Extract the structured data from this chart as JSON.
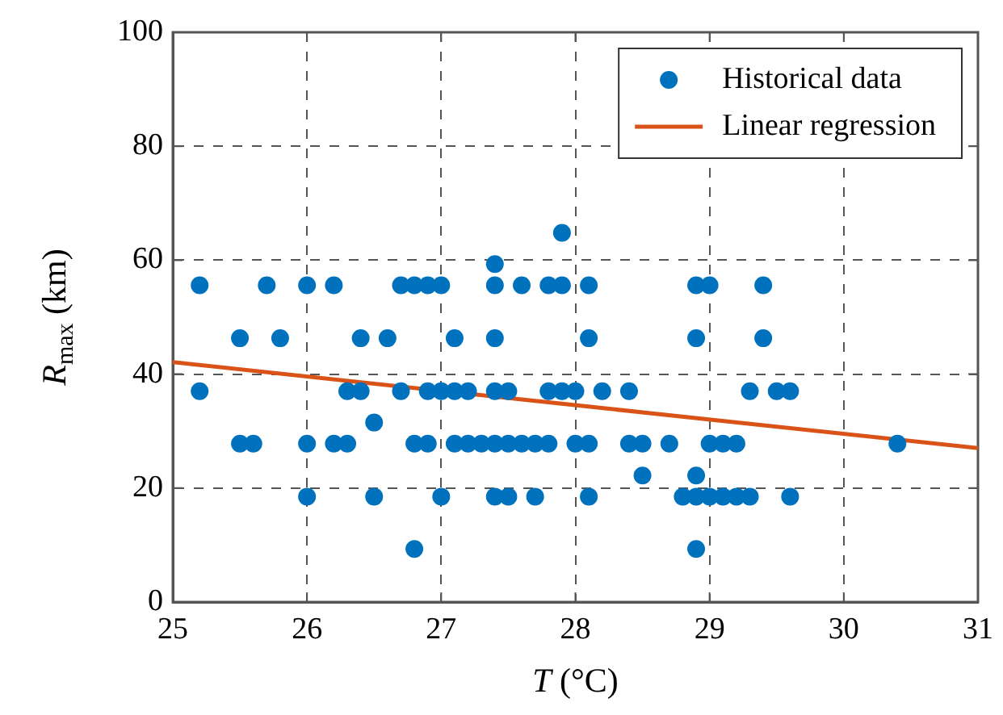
{
  "chart_data": {
    "type": "scatter",
    "xlabel": "T (°C)",
    "ylabel": "R$_{max}$ (km)",
    "xlim": [
      25,
      31
    ],
    "xticks": [
      25,
      26,
      27,
      28,
      29,
      30,
      31
    ],
    "ylim": [
      0,
      100
    ],
    "yticks": [
      0,
      20,
      40,
      60,
      80,
      100
    ],
    "grid": true,
    "legend": "top right",
    "marker": "circle",
    "series": [
      {
        "name": "Historical data",
        "color": "#0072bd",
        "x": [
          25.2,
          25.7,
          26.0,
          26.2,
          26.7,
          26.8,
          26.9,
          27.0,
          27.4,
          27.6,
          27.8,
          27.9,
          28.1,
          28.9,
          29.0,
          29.4,
          25.5,
          25.8,
          26.4,
          26.6,
          27.1,
          27.4,
          28.1,
          28.9,
          29.4,
          25.2,
          26.3,
          26.4,
          26.7,
          26.9,
          27.0,
          27.1,
          27.2,
          27.4,
          27.5,
          27.8,
          27.9,
          28.0,
          28.2,
          28.4,
          29.3,
          29.5,
          29.6,
          26.5,
          25.5,
          25.6,
          26.0,
          26.2,
          26.3,
          26.8,
          26.9,
          27.1,
          27.2,
          27.3,
          27.4,
          27.5,
          27.6,
          27.7,
          27.8,
          28.0,
          28.1,
          28.4,
          28.5,
          28.7,
          29.0,
          29.1,
          29.2,
          30.4,
          28.5,
          28.9,
          26.0,
          26.5,
          27.0,
          27.4,
          27.5,
          27.7,
          28.1,
          28.8,
          28.9,
          29.0,
          29.1,
          29.2,
          29.3,
          29.6,
          26.8,
          28.9,
          27.4,
          27.9
        ],
        "values": [
          55.6,
          55.6,
          55.6,
          55.6,
          55.6,
          55.6,
          55.6,
          55.6,
          55.6,
          55.6,
          55.6,
          55.6,
          55.6,
          55.6,
          55.6,
          55.6,
          46.3,
          46.3,
          46.3,
          46.3,
          46.3,
          46.3,
          46.3,
          46.3,
          46.3,
          37.0,
          37.0,
          37.0,
          37.0,
          37.0,
          37.0,
          37.0,
          37.0,
          37.0,
          37.0,
          37.0,
          37.0,
          37.0,
          37.0,
          37.0,
          37.0,
          37.0,
          37.0,
          31.5,
          27.8,
          27.8,
          27.8,
          27.8,
          27.8,
          27.8,
          27.8,
          27.8,
          27.8,
          27.8,
          27.8,
          27.8,
          27.8,
          27.8,
          27.8,
          27.8,
          27.8,
          27.8,
          27.8,
          27.8,
          27.8,
          27.8,
          27.8,
          27.8,
          22.2,
          22.2,
          18.5,
          18.5,
          18.5,
          18.5,
          18.5,
          18.5,
          18.5,
          18.5,
          18.5,
          18.5,
          18.5,
          18.5,
          18.5,
          18.5,
          9.3,
          9.3,
          59.3,
          64.8
        ]
      },
      {
        "name": "Linear regression",
        "type": "line",
        "color": "#d95319",
        "line_style": "solid",
        "marker": "none",
        "x": [
          25,
          31
        ],
        "values": [
          42.1,
          27.0
        ]
      }
    ]
  }
}
